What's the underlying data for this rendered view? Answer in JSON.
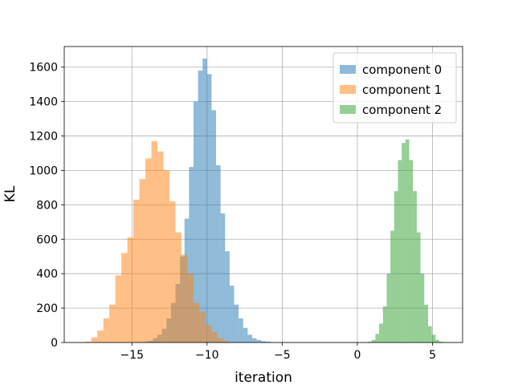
{
  "chart_data": {
    "type": "histogram",
    "title": "",
    "xlabel": "iteration",
    "ylabel": "KL",
    "xlim": [
      -19.5,
      7.0
    ],
    "ylim": [
      0,
      1720
    ],
    "xticks": [
      -15,
      -10,
      -5,
      0,
      5
    ],
    "xtick_labels": [
      "−15",
      "−10",
      "−5",
      "0",
      "5"
    ],
    "yticks": [
      0,
      200,
      400,
      600,
      800,
      1000,
      1200,
      1400,
      1600
    ],
    "grid": true,
    "legend_position": "top-right",
    "series": [
      {
        "name": "component 0",
        "color": "#1f77b4",
        "opacity": 0.5,
        "bin_edges": [
          -14.5,
          -14.2,
          -13.9,
          -13.6,
          -13.3,
          -13.0,
          -12.7,
          -12.4,
          -12.1,
          -11.8,
          -11.5,
          -11.2,
          -10.9,
          -10.6,
          -10.3,
          -10.0,
          -9.7,
          -9.4,
          -9.1,
          -8.8,
          -8.5,
          -8.2,
          -7.9,
          -7.6,
          -7.3,
          -7.0,
          -6.7,
          -6.4,
          -6.1,
          -5.8,
          -5.5
        ],
        "counts": [
          3,
          5,
          10,
          25,
          45,
          80,
          140,
          230,
          340,
          500,
          720,
          1020,
          1400,
          1580,
          1650,
          1560,
          1350,
          1030,
          750,
          530,
          330,
          220,
          140,
          85,
          45,
          25,
          15,
          8,
          5,
          2
        ]
      },
      {
        "name": "component 1",
        "color": "#ff7f0e",
        "opacity": 0.5,
        "bin_edges": [
          -18.1,
          -17.7,
          -17.3,
          -16.9,
          -16.5,
          -16.1,
          -15.7,
          -15.3,
          -14.9,
          -14.5,
          -14.1,
          -13.7,
          -13.3,
          -12.9,
          -12.5,
          -12.1,
          -11.7,
          -11.3,
          -10.9,
          -10.5,
          -10.1,
          -9.7,
          -9.3,
          -8.9,
          -8.5
        ],
        "counts": [
          5,
          30,
          70,
          140,
          220,
          390,
          520,
          610,
          830,
          950,
          1070,
          1170,
          1110,
          1000,
          820,
          640,
          510,
          400,
          230,
          180,
          100,
          60,
          25,
          10
        ]
      },
      {
        "name": "component 2",
        "color": "#2ca02c",
        "opacity": 0.5,
        "bin_edges": [
          0.7,
          0.95,
          1.2,
          1.45,
          1.7,
          1.95,
          2.2,
          2.45,
          2.7,
          2.95,
          3.2,
          3.45,
          3.7,
          3.95,
          4.2,
          4.45,
          4.7,
          4.95,
          5.2,
          5.45,
          5.7
        ],
        "counts": [
          5,
          15,
          50,
          110,
          210,
          400,
          650,
          880,
          1060,
          1160,
          1180,
          1060,
          880,
          640,
          400,
          220,
          95,
          45,
          15,
          5
        ]
      }
    ]
  }
}
